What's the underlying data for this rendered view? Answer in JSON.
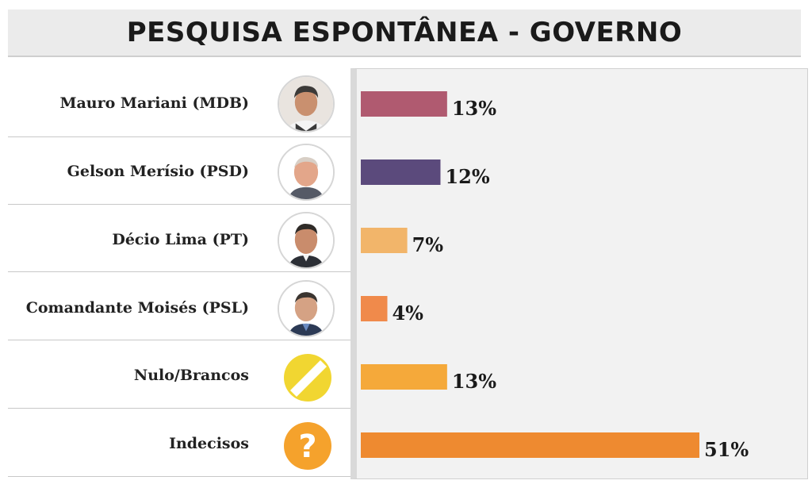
{
  "title": "PESQUISA ESPONTÂNEA - GOVERNO",
  "chart_data": {
    "type": "bar",
    "orientation": "horizontal",
    "title": "PESQUISA ESPONTÂNEA - GOVERNO",
    "categories": [
      "Mauro Mariani (MDB)",
      "Gelson Merísio (PSD)",
      "Décio Lima (PT)",
      "Comandante Moisés (PSL)",
      "Nulo/Brancos",
      "Indecisos"
    ],
    "values": [
      13,
      12,
      7,
      4,
      13,
      51
    ],
    "value_labels": [
      "13%",
      "12%",
      "7%",
      "4%",
      "13%",
      "51%"
    ],
    "unit": "%",
    "bar_colors": [
      "#b05a70",
      "#5b4a7c",
      "#f2b56a",
      "#f08a4b",
      "#f5a93a",
      "#ee8a30"
    ],
    "xlim": [
      0,
      51
    ],
    "grid": false,
    "legend": "none"
  },
  "icons": [
    "candidate-photo",
    "candidate-photo",
    "candidate-photo",
    "candidate-photo",
    "null-ballot-icon",
    "question-mark-icon"
  ]
}
